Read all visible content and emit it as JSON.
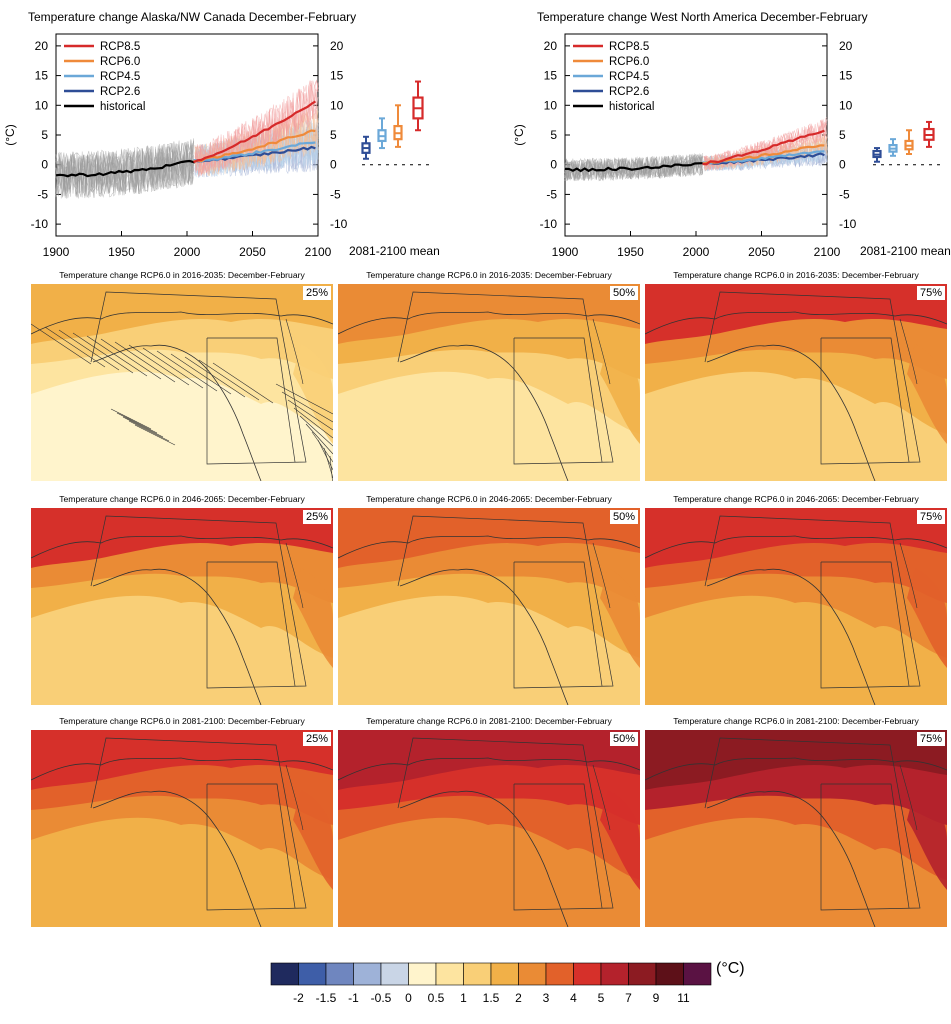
{
  "panels": [
    {
      "title": "Temperature change Alaska/NW Canada December-February",
      "amp": 1.9,
      "hist_end": 0.6,
      "ends": [
        11.0,
        6.0,
        4.0,
        3.0
      ],
      "boxes": [
        [
          1.0,
          2.0,
          2.8,
          3.6,
          4.7
        ],
        [
          2.8,
          4.0,
          4.8,
          5.8,
          7.8
        ],
        [
          3.0,
          4.3,
          5.3,
          6.5,
          10.0
        ],
        [
          5.8,
          7.8,
          9.5,
          11.3,
          14.0
        ]
      ]
    },
    {
      "title": "Temperature change West North America December-February",
      "amp": 0.9,
      "hist_end": 0.2,
      "ends": [
        6.0,
        3.5,
        2.5,
        1.8
      ],
      "boxes": [
        [
          0.5,
          1.3,
          1.7,
          2.3,
          2.8
        ],
        [
          1.5,
          2.2,
          2.7,
          3.3,
          4.3
        ],
        [
          1.8,
          2.6,
          3.2,
          4.0,
          5.8
        ],
        [
          3.0,
          4.2,
          5.0,
          6.0,
          7.2
        ]
      ]
    }
  ],
  "chart_data": {
    "type": "line",
    "ylabel": "(°C)",
    "xlim": [
      1900,
      2100
    ],
    "ylim": [
      -12,
      22
    ],
    "xticks": [
      1900,
      1950,
      2000,
      2050,
      2100
    ],
    "yticks": [
      -10,
      -5,
      0,
      5,
      10,
      15,
      20
    ],
    "legend": [
      {
        "name": "RCP8.5",
        "color": "#d62a2a"
      },
      {
        "name": "RCP6.0",
        "color": "#ef8a3a"
      },
      {
        "name": "RCP4.5",
        "color": "#6ba8d8"
      },
      {
        "name": "RCP2.6",
        "color": "#2e4d96"
      },
      {
        "name": "historical",
        "color": "#000000"
      }
    ],
    "mean_label": "2081-2100 mean"
  },
  "maps": [
    {
      "title": "Temperature change RCP6.0 in 2016-2035: December-February",
      "pct": "25%",
      "level": 0
    },
    {
      "title": "Temperature change RCP6.0 in 2016-2035: December-February",
      "pct": "50%",
      "level": 1
    },
    {
      "title": "Temperature change RCP6.0 in 2016-2035: December-February",
      "pct": "75%",
      "level": 2
    },
    {
      "title": "Temperature change RCP6.0 in 2046-2065: December-February",
      "pct": "25%",
      "level": 2
    },
    {
      "title": "Temperature change RCP6.0 in 2046-2065: December-February",
      "pct": "50%",
      "level": 3
    },
    {
      "title": "Temperature change RCP6.0 in 2046-2065: December-February",
      "pct": "75%",
      "level": 4
    },
    {
      "title": "Temperature change RCP6.0 in 2081-2100: December-February",
      "pct": "25%",
      "level": 4
    },
    {
      "title": "Temperature change RCP6.0 in 2081-2100: December-February",
      "pct": "50%",
      "level": 5
    },
    {
      "title": "Temperature change RCP6.0 in 2081-2100: December-February",
      "pct": "75%",
      "level": 6
    }
  ],
  "colorbar": {
    "colors": [
      "#1f2a5e",
      "#3e5ea8",
      "#6f86bf",
      "#9eb2d8",
      "#c9d5e6",
      "#fff4cc",
      "#fde4a0",
      "#f9cf77",
      "#f1b048",
      "#ea8b35",
      "#e2612a",
      "#d6302a",
      "#b4222c",
      "#8c1b22",
      "#5d1018",
      "#5a1243"
    ],
    "labels": [
      "-2",
      "-1.5",
      "-1",
      "-0.5",
      "0",
      "0.5",
      "1",
      "1.5",
      "2",
      "3",
      "4",
      "5",
      "7",
      "9",
      "11"
    ],
    "unit": "(°C)"
  }
}
